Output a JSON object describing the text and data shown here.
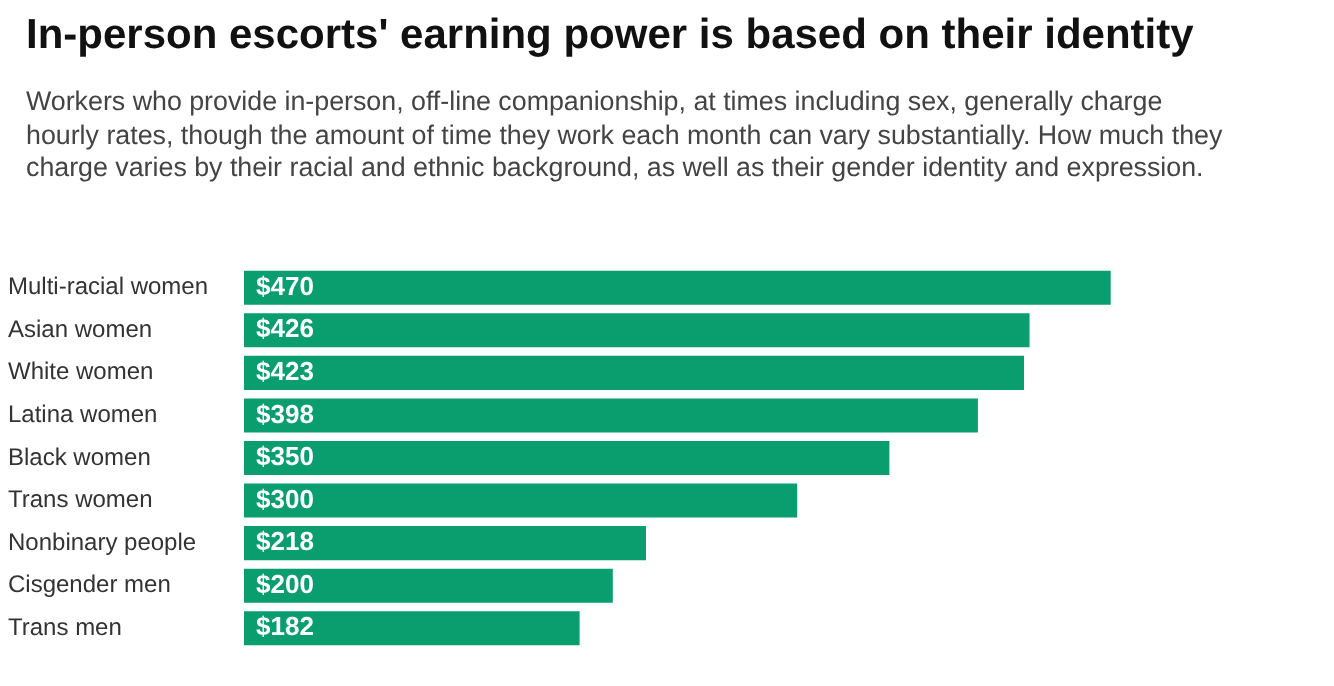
{
  "chart_data": {
    "type": "bar",
    "orientation": "horizontal",
    "title": "In-person escorts' earning power is based on their identity",
    "subtitle": "Workers who provide in-person, off-line companionship, at times including sex, generally charge hourly rates, though the amount of time they work each month can vary substantially. How much they charge varies by their racial and ethnic background, as well as their gender identity and expression.",
    "categories": [
      "Multi-racial women",
      "Asian women",
      "White women",
      "Latina women",
      "Black women",
      "Trans women",
      "Nonbinary people",
      "Cisgender men",
      "Trans men"
    ],
    "values": [
      470,
      426,
      423,
      398,
      350,
      300,
      218,
      200,
      182
    ],
    "value_labels": [
      "$470",
      "$426",
      "$423",
      "$398",
      "$350",
      "$300",
      "$218",
      "$200",
      "$182"
    ],
    "color": "#0a9e6e",
    "tick_labels": "y"
  }
}
